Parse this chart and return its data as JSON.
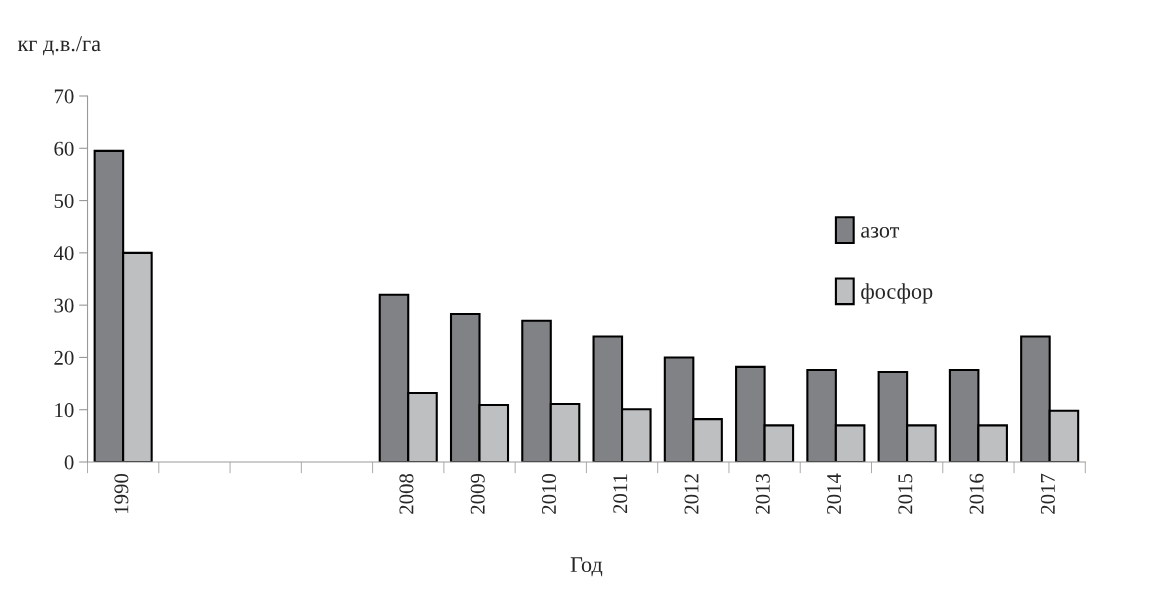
{
  "chart_data": {
    "type": "bar",
    "ylabel": "кг д.в./га",
    "xlabel": "Год",
    "categories": [
      "1990",
      null,
      null,
      null,
      "2008",
      "2009",
      "2010",
      "2011",
      "2012",
      "2013",
      "2014",
      "2015",
      "2016",
      "2017"
    ],
    "series": [
      {
        "name": "азот",
        "color": "#808285",
        "values": [
          59.5,
          null,
          null,
          null,
          32,
          28.3,
          27,
          24,
          20,
          18.2,
          17.6,
          17.2,
          17.6,
          24
        ]
      },
      {
        "name": "фосфор",
        "color": "#bdbfc1",
        "values": [
          40,
          null,
          null,
          null,
          13.2,
          10.9,
          11.1,
          10.1,
          8.2,
          7,
          7,
          7,
          7,
          9.8
        ]
      }
    ],
    "ylim": [
      0,
      70
    ],
    "yticks": [
      0,
      10,
      20,
      30,
      40,
      50,
      60,
      70
    ],
    "grid": false,
    "legend": "right"
  }
}
